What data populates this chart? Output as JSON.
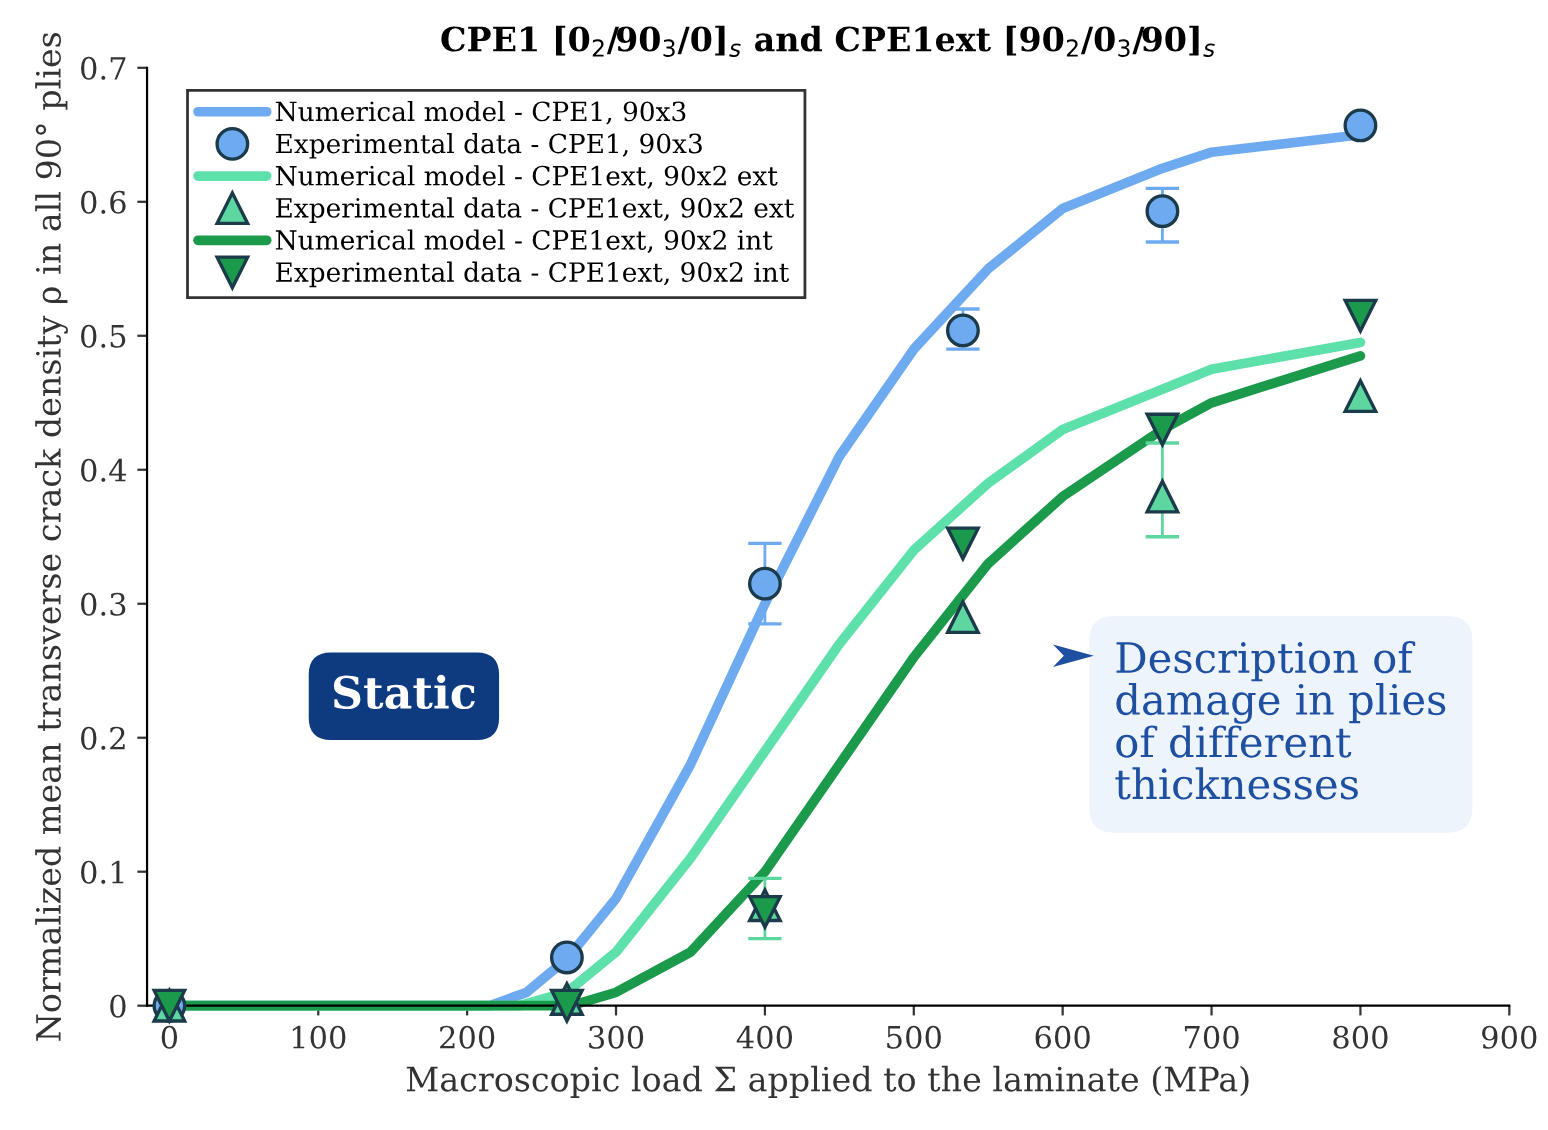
{
  "chart_data": {
    "type": "line",
    "title": "CPE1 [0$_{2}$/90$_{3}$/0]$_{s}$ and CPE1ext [90$_{2}$/0$_{3}$/90]$_{s}$",
    "xlabel": "Macroscopic load Σ applied to the laminate (MPa)",
    "ylabel": "Normalized mean transverse crack density ρ in all 90° plies",
    "xlim": [
      -15,
      900
    ],
    "ylim": [
      0,
      0.7
    ],
    "xticks": [
      0,
      100,
      200,
      300,
      400,
      500,
      600,
      700,
      800,
      900
    ],
    "yticks": [
      0,
      0.1,
      0.2,
      0.3,
      0.4,
      0.5,
      0.6,
      0.7
    ],
    "grid": false,
    "legend": "top left",
    "series": [
      {
        "name": "Numerical model - CPE1, 90x3",
        "color": "#6eaaf0",
        "marker": "none",
        "x": [
          0,
          100,
          200,
          215,
          240,
          267,
          300,
          350,
          400,
          450,
          500,
          550,
          600,
          667,
          700,
          800
        ],
        "values": [
          0,
          0,
          0,
          0,
          0.01,
          0.035,
          0.08,
          0.18,
          0.3,
          0.41,
          0.49,
          0.55,
          0.595,
          0.625,
          0.637,
          0.65
        ]
      },
      {
        "name": "Experimental data - CPE1, 90x3",
        "type": "scatter",
        "color": "#6eaaf0",
        "marker": "circle",
        "x": [
          0,
          267,
          400,
          533,
          667,
          800
        ],
        "values": [
          0,
          0.036,
          0.315,
          0.504,
          0.593,
          0.657
        ],
        "errors": [
          null,
          null,
          [
            0.285,
            0.345
          ],
          [
            0.49,
            0.52
          ],
          [
            0.57,
            0.61
          ],
          null
        ]
      },
      {
        "name": "Numerical model - CPE1ext, 90x2 ext",
        "color": "#5ee0aa",
        "marker": "none",
        "x": [
          0,
          100,
          200,
          235,
          267,
          300,
          350,
          400,
          450,
          500,
          550,
          600,
          667,
          700,
          800
        ],
        "values": [
          0,
          0,
          0,
          0,
          0.01,
          0.04,
          0.11,
          0.19,
          0.27,
          0.34,
          0.39,
          0.43,
          0.46,
          0.475,
          0.495
        ]
      },
      {
        "name": "Experimental data - CPE1ext, 90x2 ext",
        "type": "scatter",
        "color": "#5ed6a0",
        "marker": "triangle",
        "x": [
          0,
          267,
          400,
          533,
          667,
          800
        ],
        "values": [
          0,
          0.005,
          0.075,
          0.29,
          0.38,
          0.455
        ],
        "errors": [
          null,
          null,
          [
            0.05,
            0.095
          ],
          null,
          [
            0.35,
            0.42
          ],
          null
        ]
      },
      {
        "name": "Numerical model - CPE1ext, 90x2 int",
        "color": "#1a9a4a",
        "marker": "none",
        "x": [
          0,
          100,
          200,
          270,
          300,
          350,
          400,
          450,
          500,
          550,
          600,
          667,
          700,
          800
        ],
        "values": [
          0,
          0,
          0,
          0,
          0.01,
          0.04,
          0.1,
          0.18,
          0.26,
          0.33,
          0.38,
          0.43,
          0.45,
          0.485
        ]
      },
      {
        "name": "Experimental data - CPE1ext, 90x2 int",
        "type": "scatter",
        "color": "#1a9a4a",
        "marker": "triangle_down",
        "x": [
          0,
          267,
          400,
          533,
          667,
          800
        ],
        "values": [
          0,
          0,
          0.07,
          0.345,
          0.43,
          0.515
        ]
      }
    ],
    "annotations": [
      "Static",
      "Description of\ndamage in plies\nof different\nthicknesses"
    ]
  }
}
